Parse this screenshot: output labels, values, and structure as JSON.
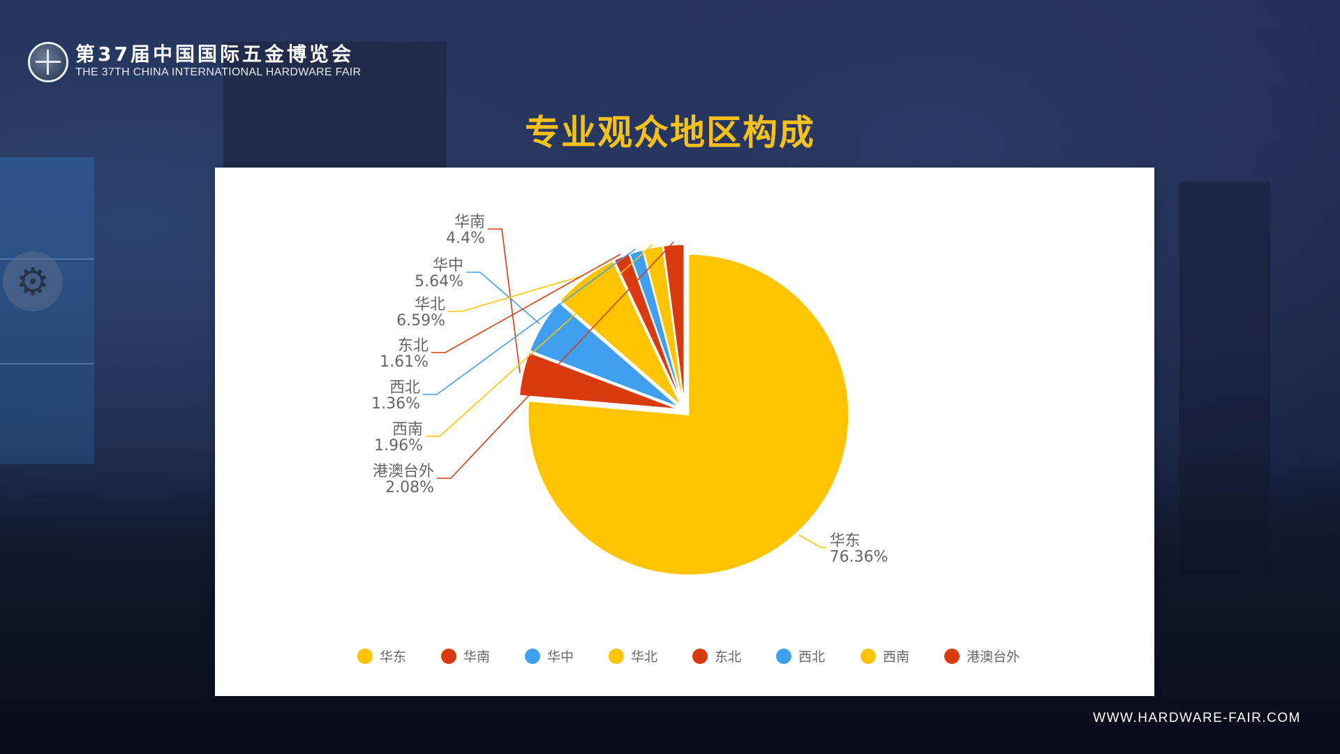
{
  "header": {
    "title": "第37届中国国际五金博览会",
    "subtitle": "THE 37TH CHINA INTERNATIONAL HARDWARE FAIR"
  },
  "page": {
    "title": "专业观众地区构成"
  },
  "footer": {
    "url": "WWW.HARDWARE-FAIR.COM"
  },
  "chart_data": {
    "type": "pie",
    "title": "专业观众地区构成",
    "legend": "bottom",
    "slices": [
      {
        "name": "华东",
        "value": 76.36,
        "label": "76.36%",
        "color": "#FFC400"
      },
      {
        "name": "华南",
        "value": 4.4,
        "label": "4.4%",
        "color": "#D93A0E"
      },
      {
        "name": "华中",
        "value": 5.64,
        "label": "5.64%",
        "color": "#3F9FF0"
      },
      {
        "name": "华北",
        "value": 6.59,
        "label": "6.59%",
        "color": "#FFC400"
      },
      {
        "name": "东北",
        "value": 1.61,
        "label": "1.61%",
        "color": "#D93A0E"
      },
      {
        "name": "西北",
        "value": 1.36,
        "label": "1.36%",
        "color": "#3F9FF0"
      },
      {
        "name": "西南",
        "value": 1.96,
        "label": "1.96%",
        "color": "#FFC400"
      },
      {
        "name": "港澳台外",
        "value": 2.08,
        "label": "2.08%",
        "color": "#D93A0E"
      }
    ]
  }
}
